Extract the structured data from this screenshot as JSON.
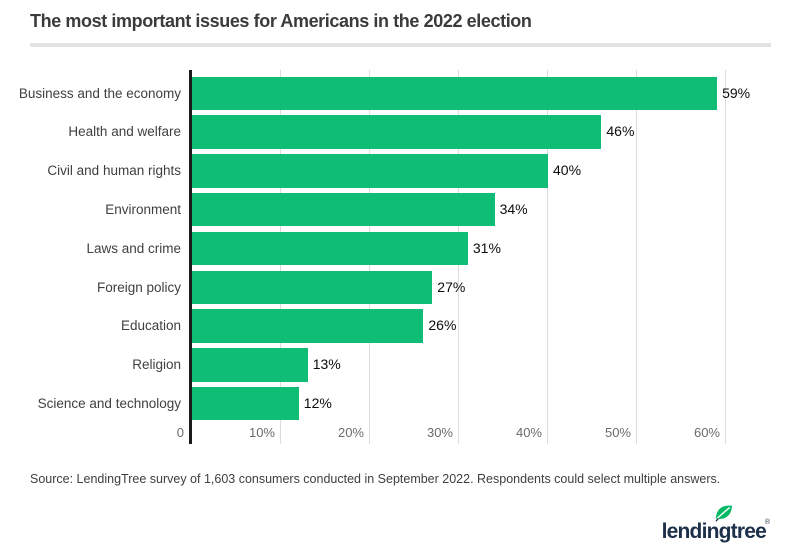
{
  "header": {
    "title": "The most important issues for Americans in the 2022 election"
  },
  "chart_data": {
    "type": "bar",
    "orientation": "horizontal",
    "title": "The most important issues for Americans in the 2022 election",
    "categories": [
      "Business and the economy",
      "Health and welfare",
      "Civil and human rights",
      "Environment",
      "Laws and crime",
      "Foreign policy",
      "Education",
      "Religion",
      "Science and technology"
    ],
    "values": [
      59,
      46,
      40,
      34,
      31,
      27,
      26,
      13,
      12
    ],
    "value_labels": [
      "59%",
      "46%",
      "40%",
      "34%",
      "31%",
      "27%",
      "26%",
      "13%",
      "12%"
    ],
    "xlabel": "",
    "ylabel": "",
    "x_tick_values": [
      0,
      10,
      20,
      30,
      40,
      50,
      60
    ],
    "x_tick_labels": [
      "0",
      "10%",
      "20%",
      "30%",
      "40%",
      "50%",
      "60%"
    ],
    "xlim": [
      0,
      65
    ],
    "grid": "vertical",
    "legend_position": "none",
    "bar_color": "#10bd77"
  },
  "footer": {
    "source_note": "Source: LendingTree survey of 1,603 consumers conducted in September 2022. Respondents could select multiple answers.",
    "logo": {
      "text": "lendingtree",
      "registered_mark": "®",
      "leaf_icon": "leaf-icon"
    }
  },
  "colors": {
    "bar": "#10bd77",
    "gridline": "#dcdcdc",
    "axis_line": "#1b1b1e",
    "title_text": "#3b3b3b",
    "category_text": "#404040",
    "tick_text": "#6b6b6b",
    "value_text": "#0b0b0b",
    "divider": "#e3e3e3",
    "logo_text": "#1d3049",
    "logo_leaf": "#00b964",
    "background": "#ffffff"
  }
}
